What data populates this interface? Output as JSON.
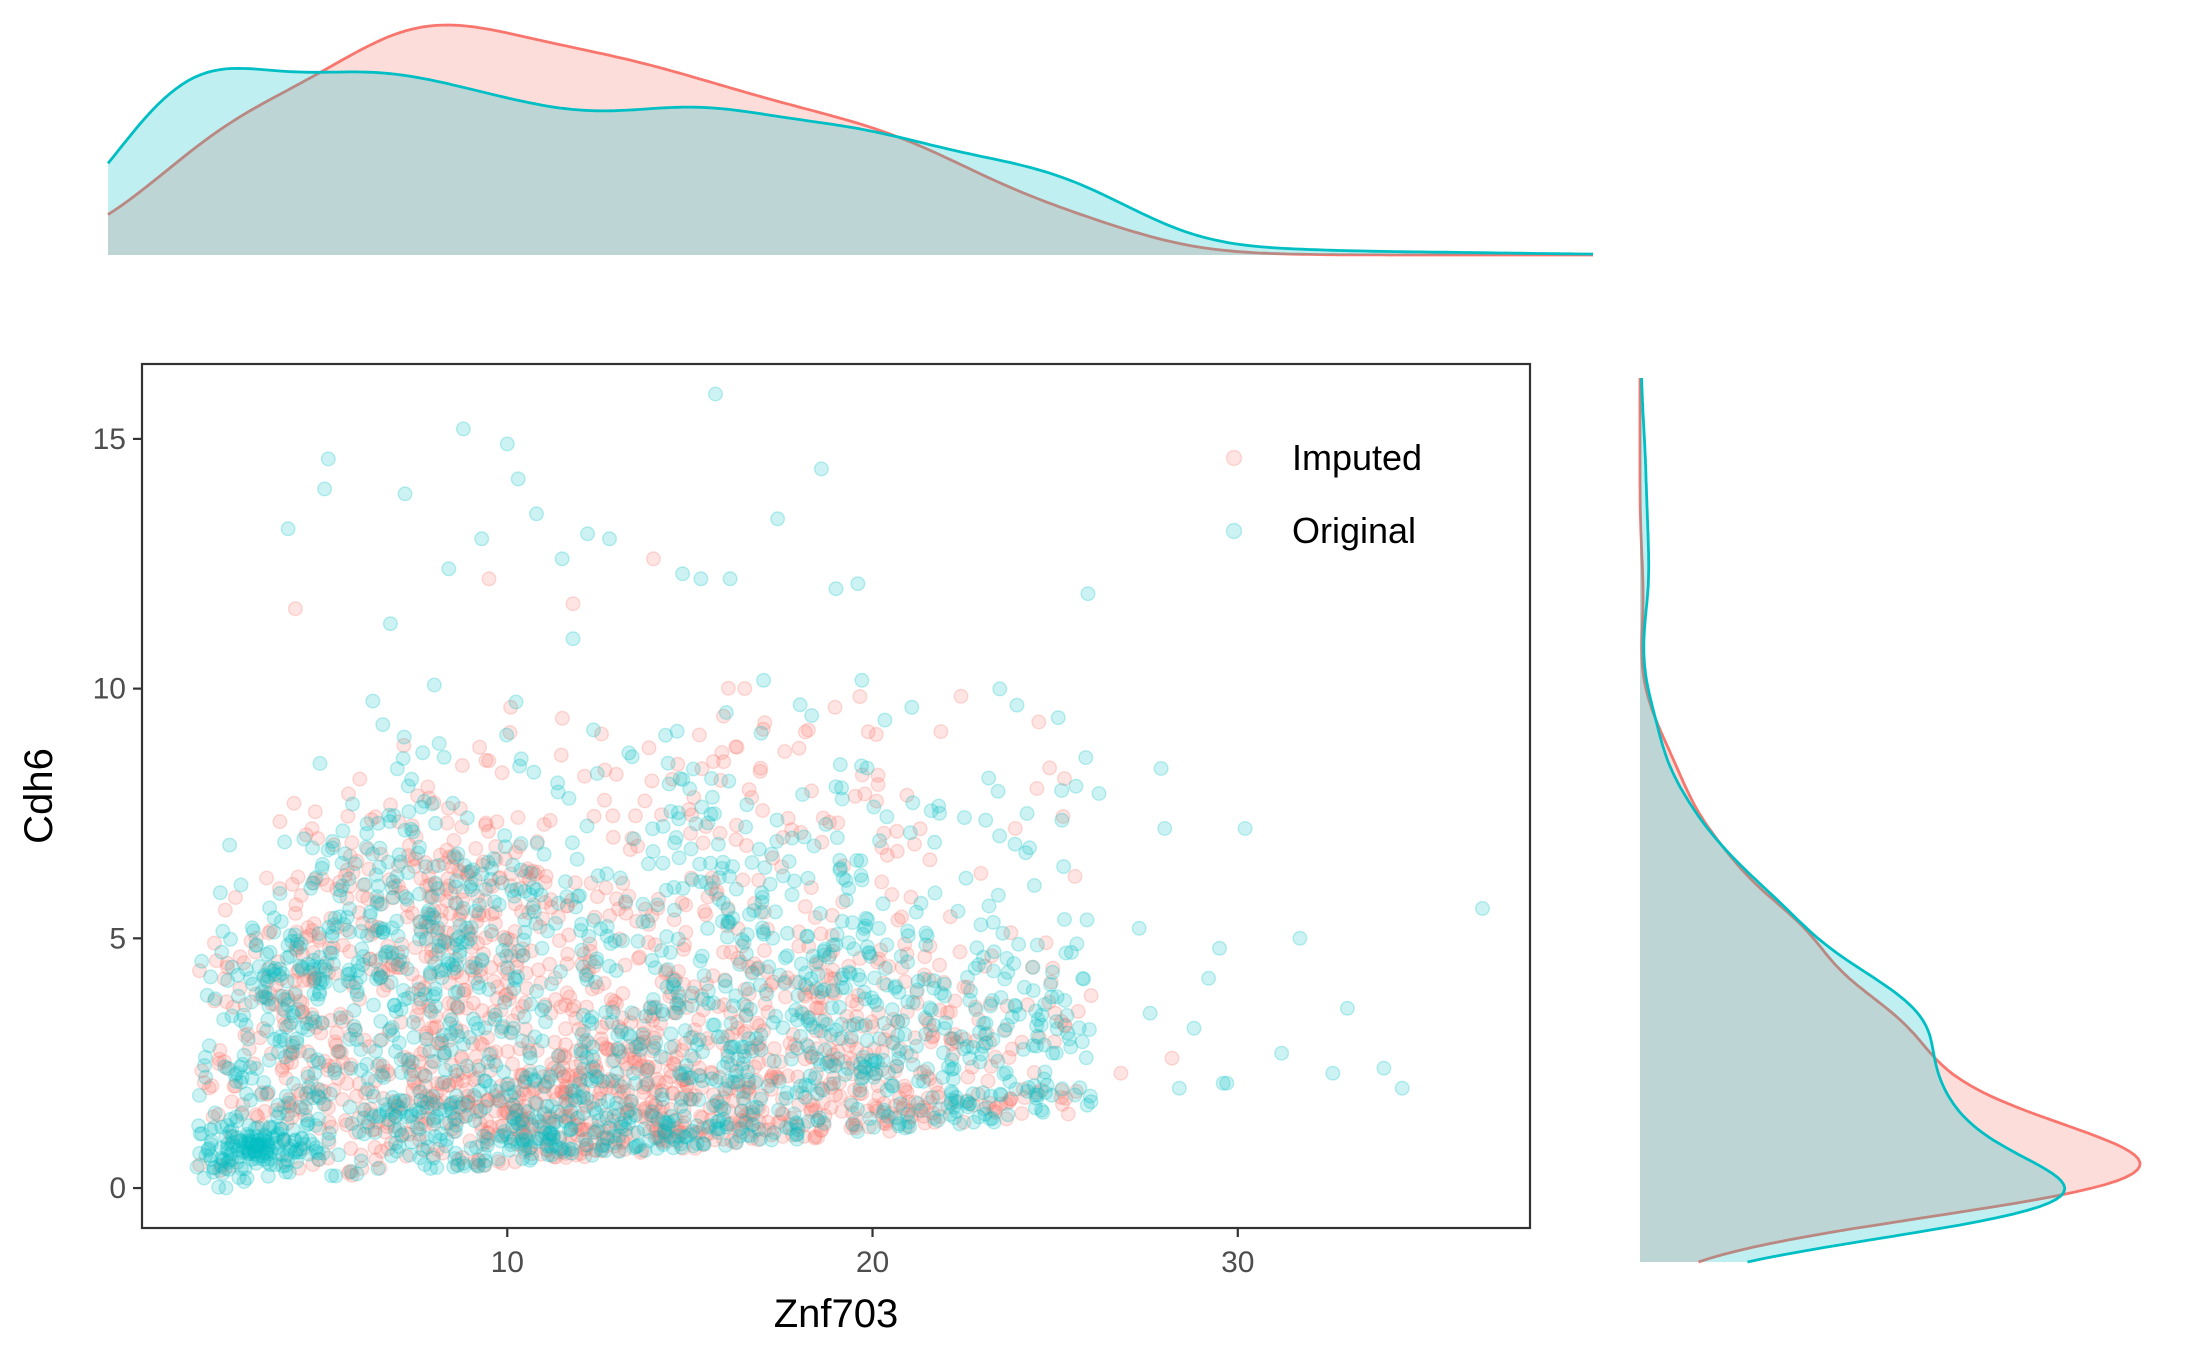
{
  "chart_data": {
    "type": "scatter",
    "title": "",
    "xlabel": "Znf703",
    "ylabel": "Cdh6",
    "xlim": [
      0,
      38
    ],
    "ylim": [
      -0.8,
      16.5
    ],
    "x_ticks": [
      10,
      20,
      30
    ],
    "y_ticks": [
      0,
      5,
      10,
      15
    ],
    "grid": false,
    "legend_position": "top-right",
    "marginal": {
      "top": "density of Znf703 by series",
      "right": "density of Cdh6 by series"
    },
    "series": [
      {
        "name": "Imputed",
        "color": "#F8766D",
        "point_alpha": 0.2,
        "clusters": [
          {
            "x_mean": 4.5,
            "y_mean": 4.0,
            "x_sd": 1.2,
            "y_sd": 1.2,
            "n": 130
          },
          {
            "x_mean": 8.0,
            "y_mean": 5.6,
            "x_sd": 2.0,
            "y_sd": 1.4,
            "n": 200
          },
          {
            "x_mean": 11.5,
            "y_mean": 1.6,
            "x_sd": 4.5,
            "y_sd": 0.8,
            "n": 520
          },
          {
            "x_mean": 14.0,
            "y_mean": 3.5,
            "x_sd": 5.0,
            "y_sd": 1.8,
            "n": 480
          },
          {
            "x_mean": 17.0,
            "y_mean": 7.2,
            "x_sd": 4.5,
            "y_sd": 1.4,
            "n": 120
          },
          {
            "x_mean": 20.5,
            "y_mean": 2.5,
            "x_sd": 3.5,
            "y_sd": 1.0,
            "n": 150
          }
        ],
        "extra_points": [
          {
            "x": 4.2,
            "y": 11.6
          },
          {
            "x": 9.5,
            "y": 12.2
          },
          {
            "x": 14.0,
            "y": 12.6
          },
          {
            "x": 11.8,
            "y": 11.7
          },
          {
            "x": 16.5,
            "y": 10.0
          },
          {
            "x": 25.0,
            "y": 3.5
          },
          {
            "x": 26.8,
            "y": 2.3
          },
          {
            "x": 28.2,
            "y": 2.6
          },
          {
            "x": 24.5,
            "y": 8.0
          }
        ]
      },
      {
        "name": "Original",
        "color": "#00BFC4",
        "point_alpha": 0.2,
        "clusters": [
          {
            "x_mean": 3.0,
            "y_mean": 0.8,
            "x_sd": 1.0,
            "y_sd": 0.25,
            "n": 140
          },
          {
            "x_mean": 4.5,
            "y_mean": 4.2,
            "x_sd": 1.2,
            "y_sd": 1.0,
            "n": 140
          },
          {
            "x_mean": 7.5,
            "y_mean": 5.5,
            "x_sd": 1.8,
            "y_sd": 1.5,
            "n": 200
          },
          {
            "x_mean": 10.5,
            "y_mean": 1.5,
            "x_sd": 5.0,
            "y_sd": 0.8,
            "n": 420
          },
          {
            "x_mean": 15.0,
            "y_mean": 3.5,
            "x_sd": 5.5,
            "y_sd": 1.9,
            "n": 420
          },
          {
            "x_mean": 18.0,
            "y_mean": 7.0,
            "x_sd": 5.0,
            "y_sd": 1.6,
            "n": 160
          },
          {
            "x_mean": 22.0,
            "y_mean": 3.0,
            "x_sd": 3.5,
            "y_sd": 1.2,
            "n": 180
          }
        ],
        "extra_points": [
          {
            "x": 15.7,
            "y": 15.9
          },
          {
            "x": 8.8,
            "y": 15.2
          },
          {
            "x": 10.0,
            "y": 14.9
          },
          {
            "x": 5.1,
            "y": 14.6
          },
          {
            "x": 5.0,
            "y": 14.0
          },
          {
            "x": 18.6,
            "y": 14.4
          },
          {
            "x": 10.3,
            "y": 14.2
          },
          {
            "x": 7.2,
            "y": 13.9
          },
          {
            "x": 17.4,
            "y": 13.4
          },
          {
            "x": 4.0,
            "y": 13.2
          },
          {
            "x": 9.3,
            "y": 13.0
          },
          {
            "x": 12.2,
            "y": 13.1
          },
          {
            "x": 12.8,
            "y": 13.0
          },
          {
            "x": 10.8,
            "y": 13.5
          },
          {
            "x": 11.5,
            "y": 12.6
          },
          {
            "x": 14.8,
            "y": 12.3
          },
          {
            "x": 15.3,
            "y": 12.2
          },
          {
            "x": 16.1,
            "y": 12.2
          },
          {
            "x": 19.6,
            "y": 12.1
          },
          {
            "x": 19.0,
            "y": 12.0
          },
          {
            "x": 25.9,
            "y": 11.9
          },
          {
            "x": 6.8,
            "y": 11.3
          },
          {
            "x": 11.8,
            "y": 11.0
          },
          {
            "x": 8.4,
            "y": 12.4
          },
          {
            "x": 27.9,
            "y": 8.4
          },
          {
            "x": 26.2,
            "y": 7.9
          },
          {
            "x": 28.0,
            "y": 7.2
          },
          {
            "x": 30.2,
            "y": 7.2
          },
          {
            "x": 29.5,
            "y": 4.8
          },
          {
            "x": 29.2,
            "y": 4.2
          },
          {
            "x": 27.3,
            "y": 5.2
          },
          {
            "x": 36.7,
            "y": 5.6
          },
          {
            "x": 31.7,
            "y": 5.0
          },
          {
            "x": 33.0,
            "y": 3.6
          },
          {
            "x": 28.8,
            "y": 3.2
          },
          {
            "x": 27.6,
            "y": 3.5
          },
          {
            "x": 31.2,
            "y": 2.7
          },
          {
            "x": 32.6,
            "y": 2.3
          },
          {
            "x": 34.0,
            "y": 2.4
          },
          {
            "x": 34.5,
            "y": 2.0
          },
          {
            "x": 29.7,
            "y": 2.1
          },
          {
            "x": 29.6,
            "y": 2.1
          },
          {
            "x": 28.4,
            "y": 2.0
          },
          {
            "x": 2.6,
            "y": 2.3
          },
          {
            "x": 2.3,
            "y": 0.0
          },
          {
            "x": 1.7,
            "y": 0.2
          }
        ]
      }
    ]
  }
}
